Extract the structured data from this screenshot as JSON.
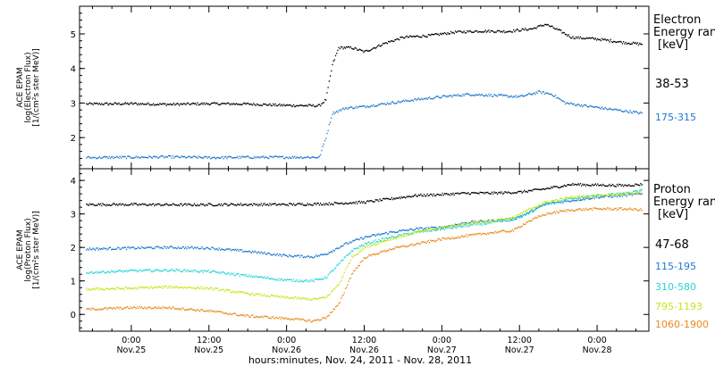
{
  "figure": {
    "xlabel": "hours:minutes, Nov. 24, 2011 - Nov. 28, 2011",
    "x_ticks": [
      {
        "time": "0:00",
        "date": "Nov.25"
      },
      {
        "time": "12:00",
        "date": "Nov.25"
      },
      {
        "time": "0:00",
        "date": "Nov.26"
      },
      {
        "time": "12:00",
        "date": "Nov.26"
      },
      {
        "time": "0:00",
        "date": "Nov.27"
      },
      {
        "time": "12:00",
        "date": "Nov.27"
      },
      {
        "time": "0:00",
        "date": "Nov.28"
      }
    ]
  },
  "chart_data": [
    {
      "type": "scatter",
      "panel": "electron",
      "ylabel_lines": [
        "ACE EPAM",
        "log(Electron Flux)",
        "[1/(cm²s ster MeV)]"
      ],
      "legend_title_lines": [
        "Electron",
        "Energy range",
        "[keV]"
      ],
      "ylim": [
        1.1,
        5.8
      ],
      "y_ticks": [
        2,
        3,
        4,
        5
      ],
      "x_hours_range": [
        -8,
        80
      ],
      "grid": false,
      "legend_placement": "right",
      "series": [
        {
          "name": "38-53",
          "color": "#000000",
          "points": [
            [
              -7,
              2.97
            ],
            [
              0,
              2.98
            ],
            [
              6,
              2.96
            ],
            [
              12,
              2.98
            ],
            [
              18,
              2.97
            ],
            [
              24,
              2.93
            ],
            [
              29,
              2.92
            ],
            [
              30,
              3.1
            ],
            [
              31,
              4.1
            ],
            [
              32,
              4.6
            ],
            [
              34,
              4.6
            ],
            [
              36,
              4.48
            ],
            [
              39,
              4.72
            ],
            [
              42,
              4.9
            ],
            [
              46,
              4.95
            ],
            [
              50,
              5.05
            ],
            [
              54,
              5.08
            ],
            [
              58,
              5.07
            ],
            [
              62,
              5.15
            ],
            [
              64,
              5.28
            ],
            [
              66,
              5.1
            ],
            [
              68,
              4.9
            ],
            [
              72,
              4.85
            ],
            [
              76,
              4.75
            ],
            [
              79,
              4.7
            ]
          ]
        },
        {
          "name": "175-315",
          "color": "#1f78d0",
          "points": [
            [
              -7,
              1.42
            ],
            [
              0,
              1.43
            ],
            [
              6,
              1.44
            ],
            [
              12,
              1.42
            ],
            [
              18,
              1.43
            ],
            [
              24,
              1.43
            ],
            [
              29,
              1.43
            ],
            [
              30,
              2.0
            ],
            [
              31,
              2.7
            ],
            [
              33,
              2.85
            ],
            [
              36,
              2.9
            ],
            [
              40,
              3.0
            ],
            [
              44,
              3.1
            ],
            [
              48,
              3.18
            ],
            [
              52,
              3.25
            ],
            [
              56,
              3.22
            ],
            [
              60,
              3.18
            ],
            [
              63,
              3.32
            ],
            [
              65,
              3.25
            ],
            [
              67,
              3.0
            ],
            [
              70,
              2.92
            ],
            [
              74,
              2.82
            ],
            [
              79,
              2.7
            ]
          ]
        }
      ]
    },
    {
      "type": "scatter",
      "panel": "proton",
      "ylabel_lines": [
        "ACE EPAM",
        "log(Proton Flux)",
        "[1/(cm²s ster MeV)]"
      ],
      "legend_title_lines": [
        "Proton",
        "Energy range",
        "[keV]"
      ],
      "ylim": [
        -0.5,
        4.35
      ],
      "y_ticks": [
        0,
        1,
        2,
        3,
        4
      ],
      "x_hours_range": [
        -8,
        80
      ],
      "grid": false,
      "legend_placement": "right",
      "series": [
        {
          "name": "47-68",
          "color": "#000000",
          "points": [
            [
              -7,
              3.28
            ],
            [
              0,
              3.28
            ],
            [
              8,
              3.27
            ],
            [
              16,
              3.28
            ],
            [
              24,
              3.28
            ],
            [
              30,
              3.3
            ],
            [
              36,
              3.35
            ],
            [
              40,
              3.45
            ],
            [
              44,
              3.55
            ],
            [
              48,
              3.58
            ],
            [
              52,
              3.62
            ],
            [
              56,
              3.62
            ],
            [
              60,
              3.65
            ],
            [
              64,
              3.75
            ],
            [
              68,
              3.88
            ],
            [
              72,
              3.86
            ],
            [
              76,
              3.85
            ],
            [
              79,
              3.88
            ]
          ]
        },
        {
          "name": "115-195",
          "color": "#1f78d0",
          "points": [
            [
              -7,
              1.95
            ],
            [
              0,
              1.98
            ],
            [
              6,
              2.0
            ],
            [
              12,
              1.98
            ],
            [
              18,
              1.88
            ],
            [
              24,
              1.75
            ],
            [
              28,
              1.72
            ],
            [
              30,
              1.8
            ],
            [
              33,
              2.1
            ],
            [
              36,
              2.3
            ],
            [
              40,
              2.45
            ],
            [
              44,
              2.55
            ],
            [
              48,
              2.6
            ],
            [
              52,
              2.75
            ],
            [
              56,
              2.8
            ],
            [
              59,
              2.85
            ],
            [
              61,
              3.0
            ],
            [
              64,
              3.3
            ],
            [
              68,
              3.4
            ],
            [
              72,
              3.5
            ],
            [
              76,
              3.55
            ],
            [
              79,
              3.6
            ]
          ]
        },
        {
          "name": "310-580",
          "color": "#27d4d4",
          "points": [
            [
              -7,
              1.25
            ],
            [
              0,
              1.3
            ],
            [
              6,
              1.32
            ],
            [
              12,
              1.28
            ],
            [
              18,
              1.15
            ],
            [
              24,
              1.02
            ],
            [
              28,
              1.0
            ],
            [
              30,
              1.1
            ],
            [
              32,
              1.5
            ],
            [
              34,
              1.9
            ],
            [
              36,
              2.1
            ],
            [
              40,
              2.3
            ],
            [
              44,
              2.45
            ],
            [
              48,
              2.55
            ],
            [
              52,
              2.65
            ],
            [
              56,
              2.75
            ],
            [
              59,
              2.82
            ],
            [
              61,
              3.0
            ],
            [
              64,
              3.3
            ],
            [
              68,
              3.45
            ],
            [
              72,
              3.55
            ],
            [
              76,
              3.6
            ],
            [
              79,
              3.7
            ]
          ]
        },
        {
          "name": "795-1193",
          "color": "#c6e619",
          "points": [
            [
              -7,
              0.75
            ],
            [
              0,
              0.78
            ],
            [
              6,
              0.82
            ],
            [
              12,
              0.78
            ],
            [
              18,
              0.62
            ],
            [
              24,
              0.5
            ],
            [
              28,
              0.45
            ],
            [
              30,
              0.5
            ],
            [
              32,
              0.9
            ],
            [
              34,
              1.7
            ],
            [
              36,
              2.0
            ],
            [
              40,
              2.25
            ],
            [
              44,
              2.45
            ],
            [
              48,
              2.6
            ],
            [
              52,
              2.72
            ],
            [
              56,
              2.8
            ],
            [
              59,
              2.88
            ],
            [
              61,
              3.1
            ],
            [
              64,
              3.35
            ],
            [
              68,
              3.5
            ],
            [
              72,
              3.55
            ],
            [
              76,
              3.6
            ],
            [
              79,
              3.65
            ]
          ]
        },
        {
          "name": "1060-1900",
          "color": "#ea8a1e",
          "points": [
            [
              -7,
              0.15
            ],
            [
              0,
              0.2
            ],
            [
              6,
              0.2
            ],
            [
              12,
              0.1
            ],
            [
              18,
              -0.05
            ],
            [
              24,
              -0.12
            ],
            [
              28,
              -0.2
            ],
            [
              30,
              -0.1
            ],
            [
              32,
              0.3
            ],
            [
              34,
              1.2
            ],
            [
              36,
              1.7
            ],
            [
              40,
              1.95
            ],
            [
              44,
              2.1
            ],
            [
              48,
              2.25
            ],
            [
              52,
              2.35
            ],
            [
              56,
              2.45
            ],
            [
              59,
              2.5
            ],
            [
              61,
              2.75
            ],
            [
              64,
              3.0
            ],
            [
              68,
              3.12
            ],
            [
              72,
              3.15
            ],
            [
              76,
              3.15
            ],
            [
              79,
              3.12
            ]
          ]
        }
      ]
    }
  ]
}
